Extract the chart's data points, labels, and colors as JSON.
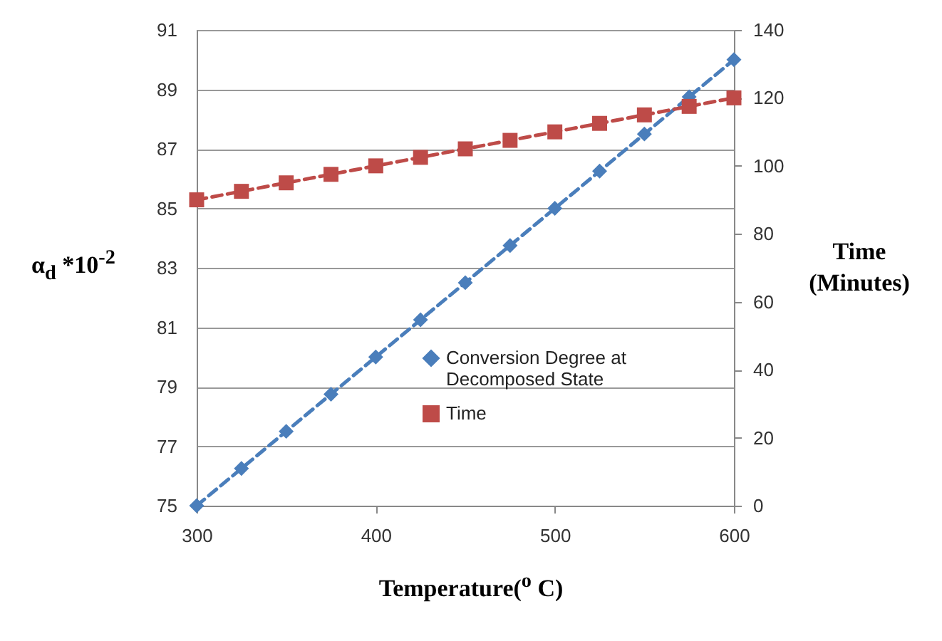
{
  "chart_data": {
    "type": "line",
    "xlabel": "Temperature($^{o}$ C)",
    "ylabel": "α$_{d}$ *10$^{-2}$",
    "y2label": "Time (Minutes)",
    "x": [
      300,
      325,
      350,
      375,
      400,
      425,
      450,
      475,
      500,
      525,
      550,
      575,
      600
    ],
    "series": [
      {
        "name": "Conversion Degree at Decomposed State",
        "color": "#4a7ebb",
        "marker": "diamond",
        "line_style": "dashed",
        "values": [
          75,
          76.25,
          77.5,
          78.75,
          80,
          81.25,
          82.5,
          83.75,
          85,
          86.25,
          87.5,
          88.75,
          90
        ]
      },
      {
        "name": "Time",
        "color": "#be4b48",
        "marker": "square",
        "line_style": "dashed",
        "axis": "y2",
        "values": [
          90,
          92.5,
          95,
          97.5,
          100,
          102.5,
          105,
          107.5,
          110,
          112.5,
          115,
          117.5,
          120
        ]
      }
    ],
    "xlim": [
      300,
      600
    ],
    "xticks": [
      300,
      400,
      500,
      600
    ],
    "ylim": [
      75,
      91
    ],
    "yticks": [
      75,
      77,
      79,
      81,
      83,
      85,
      87,
      89,
      91
    ],
    "y2lim": [
      0,
      140
    ],
    "y2ticks": [
      0,
      20,
      40,
      60,
      80,
      100,
      120,
      140
    ],
    "grid": "y",
    "legend": "bottom right"
  }
}
